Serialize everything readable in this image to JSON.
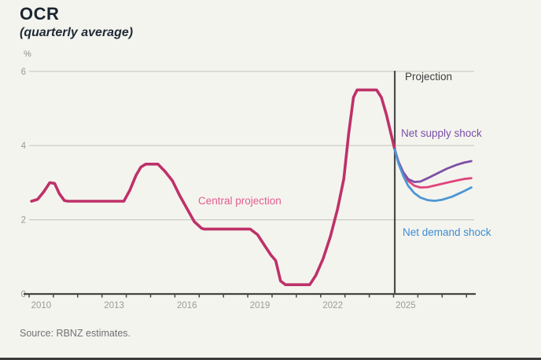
{
  "header": {
    "title": "OCR",
    "subtitle": "(quarterly average)"
  },
  "annotations": {
    "projection": "Projection",
    "net_supply_shock": "Net supply shock",
    "central_projection": "Central projection",
    "net_demand_shock": "Net demand shock"
  },
  "footer": {
    "source": "Source: RBNZ estimates."
  },
  "colors": {
    "background": "#f4f4ee",
    "central_history_line": "#be3169",
    "central_projection_line": "#e0457c",
    "supply_shock_line": "#7e4fa6",
    "demand_shock_line": "#4d97d3",
    "central_label": "#e25d92",
    "supply_label": "#7a4fa8",
    "demand_label": "#3c8ed6",
    "projection_label": "#3d3d3d",
    "projection_line": "#4b4b4d",
    "gridline": "#cacac4",
    "axis": "#454541",
    "tick_label": "#9c9c96"
  },
  "chart_data": {
    "type": "line",
    "title": "OCR",
    "subtitle": "(quarterly average)",
    "ylabel": "%",
    "xlabel": "",
    "ylim": [
      0,
      6
    ],
    "yticks": [
      0,
      2,
      4,
      6
    ],
    "xlim": [
      2009.95,
      2028.4
    ],
    "xticks_labeled": [
      2010,
      2013,
      2016,
      2019,
      2022,
      2025
    ],
    "minor_tick_years": [
      2010,
      2011,
      2012,
      2013,
      2014,
      2015,
      2016,
      2017,
      2018,
      2019,
      2020,
      2021,
      2022,
      2023,
      2024,
      2025,
      2026,
      2027,
      2028
    ],
    "grid": "horizontal only",
    "legend_position": "inline annotations on chart",
    "projection_start_year": 2025.05,
    "projection_end_year": 2028.2,
    "series": [
      {
        "name": "Central projection (history)",
        "points": [
          [
            2010.1,
            2.5
          ],
          [
            2010.35,
            2.55
          ],
          [
            2010.6,
            2.75
          ],
          [
            2010.85,
            3.0
          ],
          [
            2011.05,
            2.98
          ],
          [
            2011.25,
            2.7
          ],
          [
            2011.45,
            2.52
          ],
          [
            2011.6,
            2.5
          ],
          [
            2013.9,
            2.5
          ],
          [
            2014.15,
            2.8
          ],
          [
            2014.4,
            3.2
          ],
          [
            2014.6,
            3.42
          ],
          [
            2014.8,
            3.5
          ],
          [
            2015.3,
            3.5
          ],
          [
            2015.6,
            3.3
          ],
          [
            2015.9,
            3.05
          ],
          [
            2016.2,
            2.65
          ],
          [
            2016.5,
            2.3
          ],
          [
            2016.8,
            1.95
          ],
          [
            2017.1,
            1.77
          ],
          [
            2017.2,
            1.75
          ],
          [
            2019.1,
            1.75
          ],
          [
            2019.4,
            1.6
          ],
          [
            2019.7,
            1.3
          ],
          [
            2019.95,
            1.05
          ],
          [
            2020.15,
            0.9
          ],
          [
            2020.35,
            0.35
          ],
          [
            2020.55,
            0.25
          ],
          [
            2021.55,
            0.25
          ],
          [
            2021.8,
            0.5
          ],
          [
            2022.1,
            0.95
          ],
          [
            2022.4,
            1.55
          ],
          [
            2022.7,
            2.3
          ],
          [
            2022.95,
            3.1
          ],
          [
            2023.15,
            4.3
          ],
          [
            2023.35,
            5.3
          ],
          [
            2023.5,
            5.5
          ],
          [
            2024.3,
            5.5
          ],
          [
            2024.5,
            5.3
          ],
          [
            2024.7,
            4.85
          ],
          [
            2024.9,
            4.3
          ],
          [
            2025.05,
            3.9
          ]
        ]
      },
      {
        "name": "Central projection",
        "points": [
          [
            2025.05,
            3.9
          ],
          [
            2025.2,
            3.55
          ],
          [
            2025.4,
            3.25
          ],
          [
            2025.6,
            3.05
          ],
          [
            2025.85,
            2.92
          ],
          [
            2026.1,
            2.87
          ],
          [
            2026.4,
            2.88
          ],
          [
            2026.8,
            2.94
          ],
          [
            2027.2,
            3.0
          ],
          [
            2027.6,
            3.06
          ],
          [
            2027.9,
            3.1
          ],
          [
            2028.2,
            3.12
          ]
        ]
      },
      {
        "name": "Net supply shock",
        "points": [
          [
            2025.05,
            3.9
          ],
          [
            2025.2,
            3.57
          ],
          [
            2025.4,
            3.28
          ],
          [
            2025.6,
            3.1
          ],
          [
            2025.85,
            3.02
          ],
          [
            2026.1,
            3.03
          ],
          [
            2026.4,
            3.12
          ],
          [
            2026.8,
            3.25
          ],
          [
            2027.2,
            3.38
          ],
          [
            2027.6,
            3.48
          ],
          [
            2027.9,
            3.54
          ],
          [
            2028.2,
            3.58
          ]
        ]
      },
      {
        "name": "Net demand shock",
        "points": [
          [
            2025.05,
            3.9
          ],
          [
            2025.2,
            3.52
          ],
          [
            2025.4,
            3.18
          ],
          [
            2025.6,
            2.92
          ],
          [
            2025.85,
            2.72
          ],
          [
            2026.1,
            2.6
          ],
          [
            2026.4,
            2.53
          ],
          [
            2026.7,
            2.51
          ],
          [
            2027.0,
            2.54
          ],
          [
            2027.4,
            2.62
          ],
          [
            2027.8,
            2.74
          ],
          [
            2028.2,
            2.87
          ]
        ]
      }
    ]
  }
}
